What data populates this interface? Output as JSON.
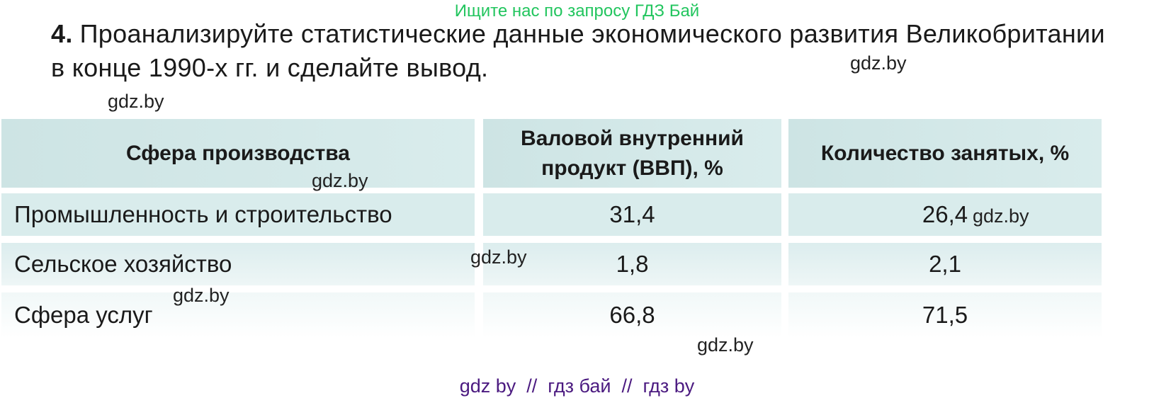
{
  "watermark_top": "Ищите нас по запросу ГДЗ Бай",
  "task": {
    "number": "4.",
    "text": "Проанализируйте статистические данные экономического развития Великобритании в конце 1990-х гг. и сделайте вывод."
  },
  "watermark": "gdz.by",
  "table": {
    "headers": [
      "Сфера производства",
      "Валовой внутренний продукт (ВВП), %",
      "Количество занятых, %"
    ],
    "rows": [
      [
        "Промышленность и строительство",
        "31,4",
        "26,4"
      ],
      [
        "Сельское хозяйство",
        "1,8",
        "2,1"
      ],
      [
        "Сфера услуг",
        "66,8",
        "71,5"
      ]
    ]
  },
  "footer": "gdz by  //  гдз бай  //  гдз by"
}
